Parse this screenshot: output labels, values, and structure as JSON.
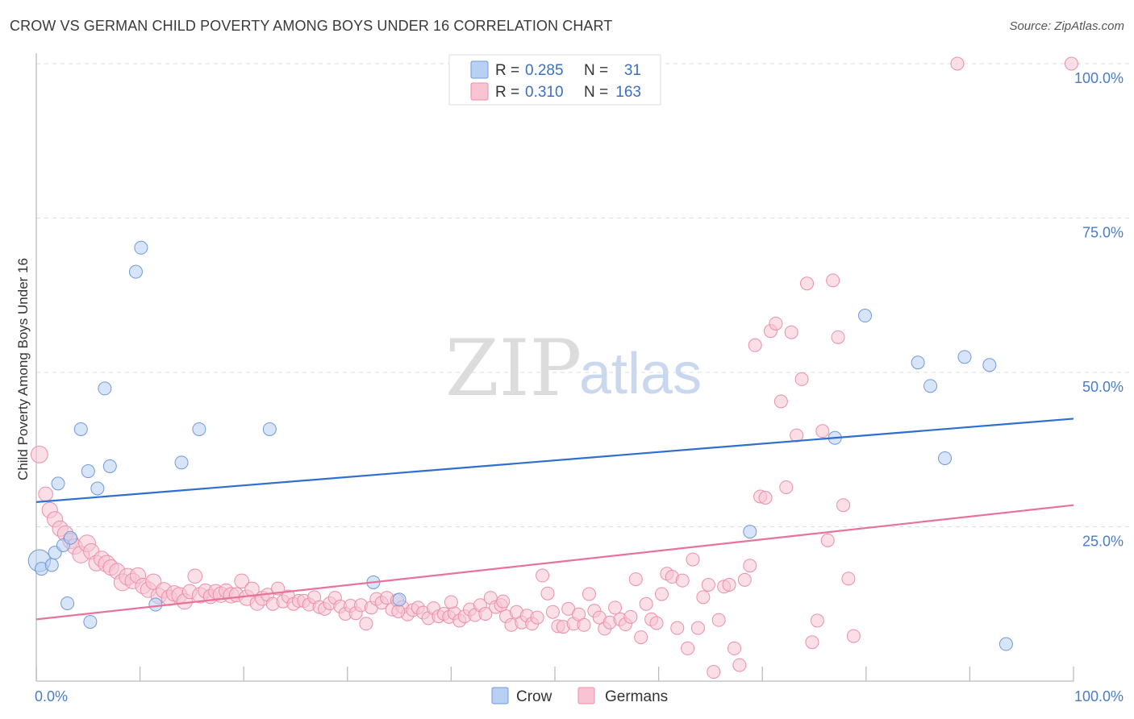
{
  "title": "CROW VS GERMAN CHILD POVERTY AMONG BOYS UNDER 16 CORRELATION CHART",
  "source": "Source: ZipAtlas.com",
  "watermark": {
    "zip": "ZIP",
    "atlas": "atlas"
  },
  "colors": {
    "crow_fill": "#b8d0f3",
    "crow_stroke": "#6f9ad8",
    "crow_line": "#2f6fcf",
    "german_fill": "#f8c4d4",
    "german_stroke": "#ec8eaa",
    "german_line": "#e8739a",
    "grid": "#dddddd",
    "axis_label": "#4a7cc9"
  },
  "legend": {
    "rows": [
      {
        "series": "Crow",
        "r_label": "R =",
        "r_value": "0.285",
        "n_label": "N =",
        "n_value": "31"
      },
      {
        "series": "Germans",
        "r_label": "R =",
        "r_value": "0.310",
        "n_label": "N =",
        "n_value": "163"
      }
    ],
    "bottom": [
      "Crow",
      "Germans"
    ]
  },
  "chart_data": {
    "type": "scatter",
    "title": "CROW VS GERMAN CHILD POVERTY AMONG BOYS UNDER 16 CORRELATION CHART",
    "xlabel": "",
    "ylabel": "Child Poverty Among Boys Under 16",
    "xlim": [
      0,
      100
    ],
    "ylim": [
      0,
      100
    ],
    "x_tick_labels": [
      {
        "value": 0,
        "label": "0.0%"
      },
      {
        "value": 100,
        "label": "100.0%"
      }
    ],
    "y_tick_labels": [
      {
        "value": 25,
        "label": "25.0%"
      },
      {
        "value": 50,
        "label": "50.0%"
      },
      {
        "value": 75,
        "label": "75.0%"
      },
      {
        "value": 100,
        "label": "100.0%"
      }
    ],
    "grid": true,
    "series": [
      {
        "name": "Crow",
        "r": 0.285,
        "n": 31,
        "trend": {
          "x": [
            0,
            100
          ],
          "y": [
            29.0,
            42.5
          ]
        },
        "points": [
          [
            0.3,
            19.5,
            1.7
          ],
          [
            0.5,
            18.2,
            1
          ],
          [
            1.5,
            18.8,
            1
          ],
          [
            1.8,
            20.8,
            1
          ],
          [
            2.1,
            32.0,
            1
          ],
          [
            2.6,
            22.0,
            1
          ],
          [
            3.0,
            12.6,
            1
          ],
          [
            3.3,
            23.2,
            1
          ],
          [
            4.3,
            40.8,
            1
          ],
          [
            5.0,
            34.0,
            1
          ],
          [
            5.2,
            9.6,
            1
          ],
          [
            5.9,
            31.2,
            1
          ],
          [
            6.6,
            47.4,
            1
          ],
          [
            7.1,
            34.8,
            1
          ],
          [
            9.6,
            66.3,
            1
          ],
          [
            10.1,
            70.2,
            1
          ],
          [
            11.5,
            12.4,
            1
          ],
          [
            14.0,
            35.4,
            1
          ],
          [
            15.7,
            40.8,
            1
          ],
          [
            22.5,
            40.8,
            1
          ],
          [
            32.5,
            16.0,
            1
          ],
          [
            35.0,
            13.2,
            1
          ],
          [
            68.8,
            24.2,
            1
          ],
          [
            77.0,
            39.4,
            1
          ],
          [
            79.9,
            59.2,
            1
          ],
          [
            85.0,
            51.6,
            1
          ],
          [
            86.2,
            47.8,
            1
          ],
          [
            87.6,
            36.1,
            1
          ],
          [
            89.5,
            52.5,
            1
          ],
          [
            91.9,
            51.2,
            1
          ],
          [
            93.5,
            6.0,
            1
          ]
        ]
      },
      {
        "name": "Germans",
        "r": 0.31,
        "n": 163,
        "trend": {
          "x": [
            0,
            100
          ],
          "y": [
            10.0,
            28.5
          ]
        },
        "points": [
          [
            0.3,
            36.7,
            1.3
          ],
          [
            0.9,
            30.3,
            1.1
          ],
          [
            1.3,
            27.7,
            1.2
          ],
          [
            1.8,
            26.2,
            1.2
          ],
          [
            2.3,
            24.7,
            1.2
          ],
          [
            2.8,
            23.9,
            1.2
          ],
          [
            3.3,
            22.7,
            1.2
          ],
          [
            3.7,
            21.8,
            1.2
          ],
          [
            4.3,
            20.5,
            1.3
          ],
          [
            4.9,
            22.3,
            1.3
          ],
          [
            5.3,
            21.0,
            1.2
          ],
          [
            5.8,
            19.1,
            1.2
          ],
          [
            6.3,
            19.8,
            1.2
          ],
          [
            6.8,
            19.0,
            1.3
          ],
          [
            7.2,
            18.4,
            1.2
          ],
          [
            7.8,
            17.8,
            1.2
          ],
          [
            8.3,
            16.0,
            1.3
          ],
          [
            8.8,
            16.9,
            1.3
          ],
          [
            9.3,
            16.2,
            1.2
          ],
          [
            9.8,
            17.1,
            1.2
          ],
          [
            10.3,
            15.4,
            1.2
          ],
          [
            10.8,
            14.8,
            1.2
          ],
          [
            11.3,
            16.1,
            1.2
          ],
          [
            11.8,
            13.8,
            1.2
          ],
          [
            12.3,
            14.7,
            1.2
          ],
          [
            12.8,
            13.5,
            1.2
          ],
          [
            13.3,
            14.2,
            1.2
          ],
          [
            13.8,
            13.9,
            1.2
          ],
          [
            14.3,
            12.9,
            1.2
          ],
          [
            14.8,
            14.5,
            1.1
          ],
          [
            15.3,
            17.0,
            1.1
          ],
          [
            15.8,
            13.9,
            1.2
          ],
          [
            16.3,
            14.6,
            1.1
          ],
          [
            16.8,
            13.7,
            1.1
          ],
          [
            17.3,
            14.5,
            1.1
          ],
          [
            17.8,
            14.0,
            1.2
          ],
          [
            18.3,
            14.6,
            1.1
          ],
          [
            18.8,
            13.9,
            1.2
          ],
          [
            19.3,
            14.0,
            1.1
          ],
          [
            19.8,
            16.2,
            1.1
          ],
          [
            20.3,
            13.5,
            1.2
          ],
          [
            20.8,
            14.9,
            1.1
          ],
          [
            21.3,
            12.6,
            1.1
          ],
          [
            21.8,
            13.4,
            1.1
          ],
          [
            22.3,
            14.0,
            1
          ],
          [
            22.8,
            12.5,
            1
          ],
          [
            23.3,
            15.0,
            1
          ],
          [
            23.8,
            12.9,
            1
          ],
          [
            24.3,
            13.7,
            1
          ],
          [
            24.8,
            12.5,
            1
          ],
          [
            25.3,
            13.0,
            1
          ],
          [
            25.8,
            13.0,
            1
          ],
          [
            26.3,
            12.4,
            1
          ],
          [
            26.8,
            13.6,
            1
          ],
          [
            27.3,
            12.0,
            1
          ],
          [
            27.8,
            11.7,
            1
          ],
          [
            28.3,
            12.6,
            1
          ],
          [
            28.8,
            13.5,
            1
          ],
          [
            29.3,
            12.1,
            1
          ],
          [
            29.8,
            10.9,
            1
          ],
          [
            30.3,
            12.2,
            1
          ],
          [
            30.8,
            11.0,
            1
          ],
          [
            31.3,
            12.3,
            1
          ],
          [
            31.8,
            9.3,
            1
          ],
          [
            32.3,
            11.9,
            1
          ],
          [
            32.8,
            13.3,
            1
          ],
          [
            33.3,
            12.7,
            1
          ],
          [
            33.8,
            13.5,
            1
          ],
          [
            34.3,
            11.6,
            1
          ],
          [
            34.8,
            13.1,
            1
          ],
          [
            35.3,
            12.0,
            1
          ],
          [
            35.8,
            10.8,
            1
          ],
          [
            36.3,
            11.5,
            1
          ],
          [
            36.8,
            11.9,
            1
          ],
          [
            37.3,
            11.1,
            1
          ],
          [
            37.8,
            10.2,
            1
          ],
          [
            38.3,
            11.8,
            1
          ],
          [
            38.8,
            10.5,
            1
          ],
          [
            39.3,
            10.9,
            1
          ],
          [
            39.8,
            10.4,
            1
          ],
          [
            40.3,
            11.0,
            1
          ],
          [
            40.8,
            9.8,
            1
          ],
          [
            41.3,
            10.5,
            1
          ],
          [
            41.8,
            11.6,
            1
          ],
          [
            42.3,
            10.7,
            1
          ],
          [
            42.8,
            12.3,
            1
          ],
          [
            43.3,
            10.9,
            1
          ],
          [
            43.8,
            13.5,
            1
          ],
          [
            44.3,
            12.0,
            1
          ],
          [
            44.8,
            12.3,
            1
          ],
          [
            45.3,
            10.5,
            1
          ],
          [
            45.8,
            9.1,
            1
          ],
          [
            46.3,
            11.2,
            1
          ],
          [
            46.8,
            9.5,
            1
          ],
          [
            47.3,
            10.6,
            1
          ],
          [
            47.8,
            9.3,
            1
          ],
          [
            48.3,
            10.3,
            1
          ],
          [
            48.8,
            17.1,
            1
          ],
          [
            49.3,
            14.2,
            1
          ],
          [
            49.8,
            11.2,
            1
          ],
          [
            50.3,
            8.9,
            1
          ],
          [
            50.8,
            8.8,
            1
          ],
          [
            51.3,
            11.7,
            1
          ],
          [
            51.8,
            9.3,
            1
          ],
          [
            52.3,
            10.8,
            1
          ],
          [
            52.8,
            9.1,
            1
          ],
          [
            53.3,
            14.1,
            1
          ],
          [
            53.8,
            11.4,
            1
          ],
          [
            54.3,
            10.3,
            1
          ],
          [
            54.8,
            8.5,
            1
          ],
          [
            55.3,
            9.5,
            1
          ],
          [
            55.8,
            11.9,
            1
          ],
          [
            56.3,
            10.0,
            1
          ],
          [
            56.8,
            9.2,
            1
          ],
          [
            57.3,
            10.4,
            1
          ],
          [
            57.8,
            16.5,
            1
          ],
          [
            58.3,
            7.1,
            1
          ],
          [
            58.8,
            12.5,
            1
          ],
          [
            59.3,
            10.0,
            1
          ],
          [
            59.8,
            9.4,
            1
          ],
          [
            60.3,
            14.1,
            1
          ],
          [
            60.8,
            17.4,
            1
          ],
          [
            61.3,
            16.9,
            1
          ],
          [
            61.8,
            8.6,
            1
          ],
          [
            62.3,
            16.3,
            1
          ],
          [
            62.8,
            5.3,
            1
          ],
          [
            63.3,
            19.7,
            1
          ],
          [
            63.8,
            8.6,
            1
          ],
          [
            64.3,
            13.6,
            1
          ],
          [
            64.8,
            15.6,
            1
          ],
          [
            65.3,
            1.5,
            1
          ],
          [
            65.8,
            9.9,
            1
          ],
          [
            66.3,
            15.3,
            1
          ],
          [
            66.8,
            15.6,
            1
          ],
          [
            67.3,
            5.3,
            1
          ],
          [
            67.8,
            2.6,
            1
          ],
          [
            68.3,
            16.4,
            1
          ],
          [
            68.8,
            18.7,
            1
          ],
          [
            69.3,
            54.4,
            1
          ],
          [
            69.8,
            29.9,
            1
          ],
          [
            70.3,
            29.7,
            1
          ],
          [
            70.8,
            56.7,
            1
          ],
          [
            71.3,
            57.9,
            1
          ],
          [
            71.8,
            45.3,
            1
          ],
          [
            72.3,
            31.4,
            1
          ],
          [
            72.8,
            56.5,
            1
          ],
          [
            73.3,
            39.8,
            1
          ],
          [
            73.8,
            48.9,
            1
          ],
          [
            74.3,
            64.4,
            1
          ],
          [
            74.8,
            6.3,
            1
          ],
          [
            75.3,
            9.8,
            1
          ],
          [
            75.8,
            40.5,
            1
          ],
          [
            76.3,
            22.8,
            1
          ],
          [
            76.8,
            64.9,
            1
          ],
          [
            77.3,
            55.7,
            1
          ],
          [
            77.8,
            28.5,
            1
          ],
          [
            78.3,
            16.6,
            1
          ],
          [
            78.8,
            7.3,
            1
          ],
          [
            88.8,
            100.0,
            1
          ],
          [
            99.8,
            100.0,
            1
          ],
          [
            34.9,
            11.3,
            1
          ],
          [
            40.0,
            12.8,
            1
          ],
          [
            45.0,
            12.9,
            1
          ]
        ]
      }
    ]
  }
}
